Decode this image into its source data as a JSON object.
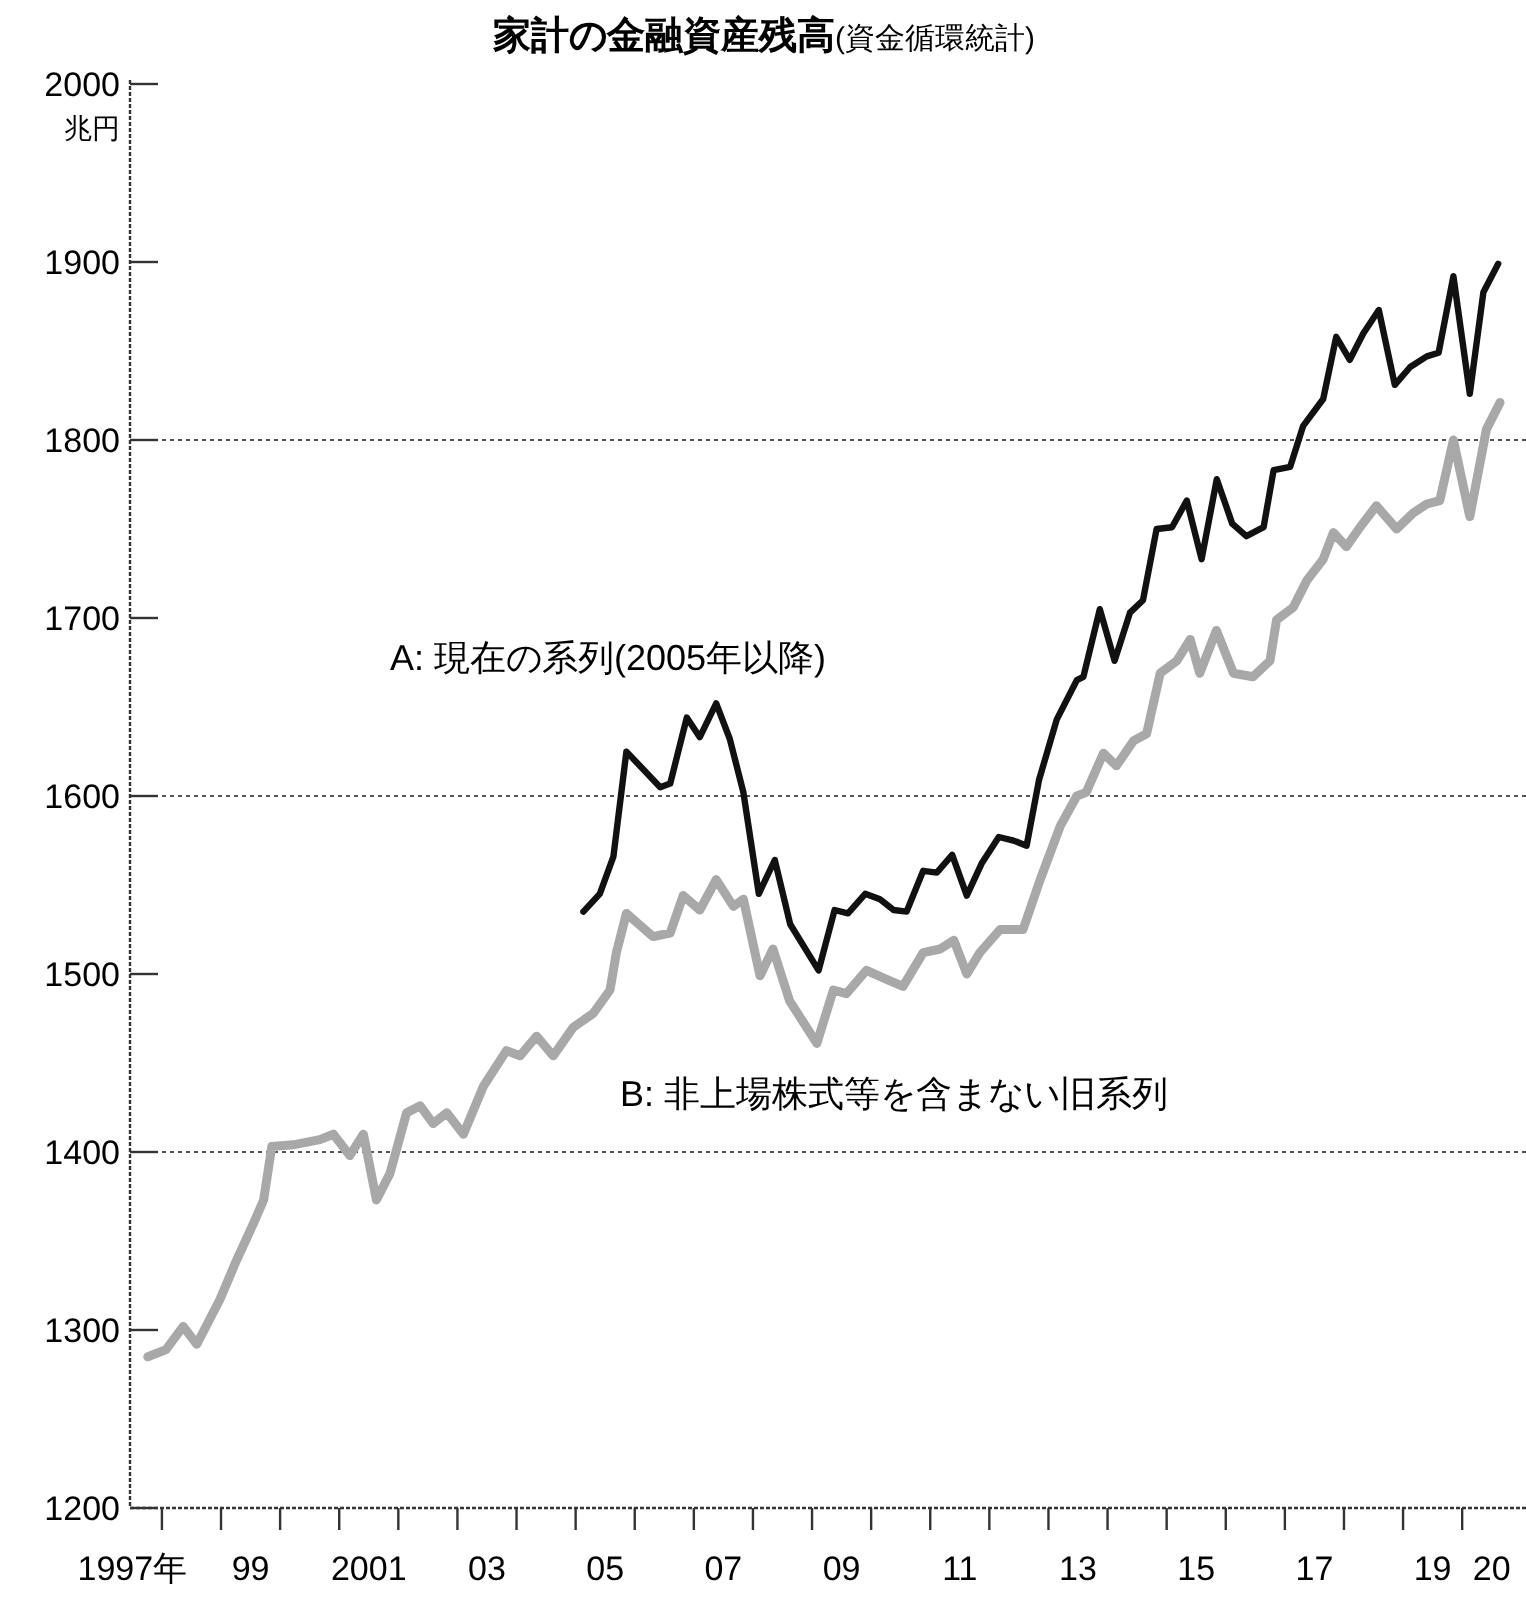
{
  "chart_data": {
    "type": "line",
    "title": "家計の金融資産残高",
    "subtitle": "(資金循環統計)",
    "ylabel": "兆円",
    "xlim": [
      1996.96,
      2020.58
    ],
    "ylim": [
      1200,
      2000
    ],
    "yticks": [
      1200,
      1300,
      1400,
      1500,
      1600,
      1700,
      1800,
      1900,
      2000
    ],
    "xticks": [
      {
        "value": 1997,
        "label": "1997年"
      },
      {
        "value": 1997.5,
        "label": null
      },
      {
        "value": 1998.5,
        "label": null
      },
      {
        "value": 1999,
        "label": "99"
      },
      {
        "value": 1999.5,
        "label": null
      },
      {
        "value": 2000.5,
        "label": null
      },
      {
        "value": 2001,
        "label": "2001"
      },
      {
        "value": 2001.5,
        "label": null
      },
      {
        "value": 2002.5,
        "label": null
      },
      {
        "value": 2003,
        "label": "03"
      },
      {
        "value": 2003.5,
        "label": null
      },
      {
        "value": 2004.5,
        "label": null
      },
      {
        "value": 2005,
        "label": "05"
      },
      {
        "value": 2005.5,
        "label": null
      },
      {
        "value": 2006.5,
        "label": null
      },
      {
        "value": 2007,
        "label": "07"
      },
      {
        "value": 2007.5,
        "label": null
      },
      {
        "value": 2008.5,
        "label": null
      },
      {
        "value": 2009,
        "label": "09"
      },
      {
        "value": 2009.5,
        "label": null
      },
      {
        "value": 2010.5,
        "label": null
      },
      {
        "value": 2011,
        "label": "11"
      },
      {
        "value": 2011.5,
        "label": null
      },
      {
        "value": 2012.5,
        "label": null
      },
      {
        "value": 2013,
        "label": "13"
      },
      {
        "value": 2013.5,
        "label": null
      },
      {
        "value": 2014.5,
        "label": null
      },
      {
        "value": 2015,
        "label": "15"
      },
      {
        "value": 2015.5,
        "label": null
      },
      {
        "value": 2016.5,
        "label": null
      },
      {
        "value": 2017,
        "label": "17"
      },
      {
        "value": 2017.5,
        "label": null
      },
      {
        "value": 2018.5,
        "label": null
      },
      {
        "value": 2019,
        "label": "19"
      },
      {
        "value": 2019.5,
        "label": null
      },
      {
        "value": 2020,
        "label": "20"
      }
    ],
    "ref_lines": [
      {
        "axis": "y",
        "value": 1400,
        "line_style": "dotted",
        "color": "#555555"
      },
      {
        "axis": "y",
        "value": 1600,
        "line_style": "dotted",
        "color": "#555555"
      },
      {
        "axis": "y",
        "value": 1800,
        "line_style": "dotted",
        "color": "#555555"
      }
    ],
    "legend": false,
    "series": [
      {
        "name": "A: 現在の系列(2005年以降)",
        "color": "#111111",
        "x": [
          2004.63,
          2004.91,
          2005.14,
          2005.36,
          2005.93,
          2006.1,
          2006.38,
          2006.6,
          2006.88,
          2007.11,
          2007.34,
          2007.6,
          2007.87,
          2008.13,
          2008.61,
          2008.88,
          2009.11,
          2009.4,
          2009.65,
          2009.88,
          2010.1,
          2010.38,
          2010.61,
          2010.87,
          2011.12,
          2011.37,
          2011.66,
          2011.91,
          2012.13,
          2012.34,
          2012.64,
          2012.98,
          2013.09,
          2013.37,
          2013.62,
          2013.88,
          2014.1,
          2014.33,
          2014.59,
          2014.84,
          2015.09,
          2015.35,
          2015.61,
          2015.85,
          2016.14,
          2016.31,
          2016.59,
          2016.81,
          2017.15,
          2017.37,
          2017.6,
          2017.83,
          2018.09,
          2018.36,
          2018.62,
          2018.9,
          2019.1,
          2019.35,
          2019.63,
          2019.86,
          2020.11
        ],
        "values": [
          1535,
          1545,
          1566,
          1625,
          1605,
          1607,
          1644,
          1633,
          1652,
          1632,
          1602,
          1545,
          1564,
          1528,
          1502,
          1536,
          1534,
          1545,
          1542,
          1536,
          1535,
          1558,
          1557,
          1567,
          1544,
          1562,
          1577,
          1575,
          1572,
          1609,
          1643,
          1665,
          1667,
          1705,
          1676,
          1703,
          1710,
          1750,
          1751,
          1766,
          1733,
          1778,
          1753,
          1746,
          1751,
          1783,
          1785,
          1808,
          1823,
          1858,
          1845,
          1860,
          1873,
          1831,
          1841,
          1847,
          1849,
          1892,
          1826,
          1883,
          1899
        ]
      },
      {
        "name": "B: 非上場株式等を含まない旧系列",
        "color": "#a8a8a8",
        "x": [
          1997.26,
          1997.57,
          1997.86,
          1998.09,
          1998.48,
          1998.76,
          1999.05,
          1999.22,
          1999.36,
          1999.72,
          2000.17,
          2000.4,
          2000.68,
          2000.91,
          2001.13,
          2001.36,
          2001.64,
          2001.87,
          2002.09,
          2002.32,
          2002.6,
          2002.94,
          2003.33,
          2003.56,
          2003.84,
          2004.12,
          2004.46,
          2004.8,
          2005.08,
          2005.19,
          2005.36,
          2005.81,
          2006.1,
          2006.32,
          2006.6,
          2006.88,
          2007.17,
          2007.34,
          2007.62,
          2007.84,
          2008.12,
          2008.58,
          2008.86,
          2009.08,
          2009.42,
          2009.76,
          2010.04,
          2010.38,
          2010.67,
          2010.9,
          2011.12,
          2011.34,
          2011.68,
          2012.07,
          2012.36,
          2012.7,
          2012.98,
          2013.14,
          2013.43,
          2013.65,
          2013.94,
          2014.16,
          2014.39,
          2014.67,
          2014.9,
          2015.06,
          2015.34,
          2015.63,
          2015.96,
          2016.25,
          2016.36,
          2016.64,
          2016.87,
          2017.15,
          2017.32,
          2017.54,
          2017.77,
          2018.05,
          2018.39,
          2018.67,
          2018.9,
          2019.12,
          2019.35,
          2019.63,
          2019.91,
          2020.14
        ],
        "values": [
          1285,
          1289,
          1302,
          1292,
          1317,
          1339,
          1360,
          1373,
          1403,
          1404,
          1407,
          1410,
          1398,
          1410,
          1373,
          1388,
          1422,
          1426,
          1416,
          1422,
          1410,
          1437,
          1457,
          1454,
          1465,
          1454,
          1470,
          1478,
          1491,
          1512,
          1534,
          1521,
          1523,
          1544,
          1536,
          1553,
          1538,
          1542,
          1499,
          1514,
          1485,
          1461,
          1491,
          1489,
          1502,
          1497,
          1493,
          1512,
          1514,
          1519,
          1500,
          1512,
          1525,
          1525,
          1553,
          1583,
          1600,
          1602,
          1624,
          1617,
          1631,
          1635,
          1669,
          1676,
          1688,
          1669,
          1693,
          1669,
          1667,
          1676,
          1699,
          1706,
          1721,
          1733,
          1748,
          1740,
          1751,
          1763,
          1750,
          1759,
          1764,
          1766,
          1800,
          1757,
          1806,
          1821
        ]
      }
    ]
  }
}
